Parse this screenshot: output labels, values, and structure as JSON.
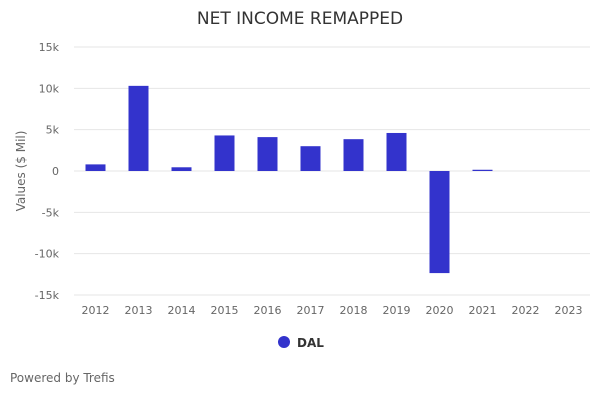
{
  "chart_data": {
    "type": "bar",
    "title": "NET INCOME REMAPPED",
    "ylabel": "Values ($ Mil)",
    "xlabel": "",
    "categories": [
      "2012",
      "2013",
      "2014",
      "2015",
      "2016",
      "2017",
      "2018",
      "2019",
      "2020",
      "2021",
      "2022",
      "2023"
    ],
    "series": [
      {
        "name": "DAL",
        "color": "#3333cc",
        "values": [
          800,
          10300,
          450,
          4300,
          4100,
          3000,
          3850,
          4600,
          -12350,
          150,
          null,
          null
        ]
      }
    ],
    "ylim": [
      -15000,
      15000
    ],
    "yticks": [
      15000,
      10000,
      5000,
      0,
      -5000,
      -10000,
      -15000
    ],
    "ytick_labels": [
      "15k",
      "10k",
      "5k",
      "0",
      "-5k",
      "-10k",
      "-15k"
    ],
    "grid": true,
    "legend_position": "bottom"
  },
  "footer": {
    "credit": "Powered by Trefis"
  }
}
